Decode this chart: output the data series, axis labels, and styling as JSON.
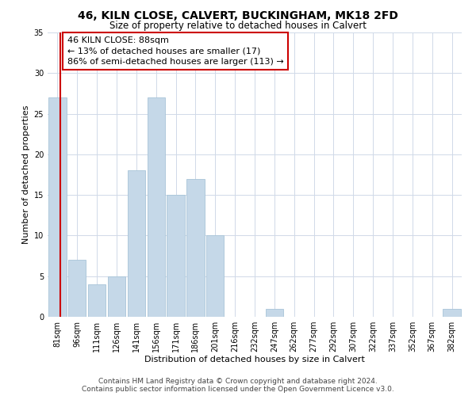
{
  "title": "46, KILN CLOSE, CALVERT, BUCKINGHAM, MK18 2FD",
  "subtitle": "Size of property relative to detached houses in Calvert",
  "xlabel": "Distribution of detached houses by size in Calvert",
  "ylabel": "Number of detached properties",
  "footer_line1": "Contains HM Land Registry data © Crown copyright and database right 2024.",
  "footer_line2": "Contains public sector information licensed under the Open Government Licence v3.0.",
  "annotation_line1": "46 KILN CLOSE: 88sqm",
  "annotation_line2": "← 13% of detached houses are smaller (17)",
  "annotation_line3": "86% of semi-detached houses are larger (113) →",
  "bar_labels": [
    "81sqm",
    "96sqm",
    "111sqm",
    "126sqm",
    "141sqm",
    "156sqm",
    "171sqm",
    "186sqm",
    "201sqm",
    "216sqm",
    "232sqm",
    "247sqm",
    "262sqm",
    "277sqm",
    "292sqm",
    "307sqm",
    "322sqm",
    "337sqm",
    "352sqm",
    "367sqm",
    "382sqm"
  ],
  "bar_values": [
    27,
    7,
    4,
    5,
    18,
    27,
    15,
    17,
    10,
    0,
    0,
    1,
    0,
    0,
    0,
    0,
    0,
    0,
    0,
    0,
    1
  ],
  "bar_color": "#c5d8e8",
  "bar_edge_color": "#a8c4d8",
  "highlight_line_color": "#cc0000",
  "annotation_box_edge_color": "#cc0000",
  "ylim": [
    0,
    35
  ],
  "yticks": [
    0,
    5,
    10,
    15,
    20,
    25,
    30,
    35
  ],
  "background_color": "#ffffff",
  "grid_color": "#d0d9e8",
  "title_fontsize": 10,
  "subtitle_fontsize": 8.5,
  "axis_label_fontsize": 8,
  "tick_fontsize": 7,
  "annotation_fontsize": 8,
  "footer_fontsize": 6.5
}
